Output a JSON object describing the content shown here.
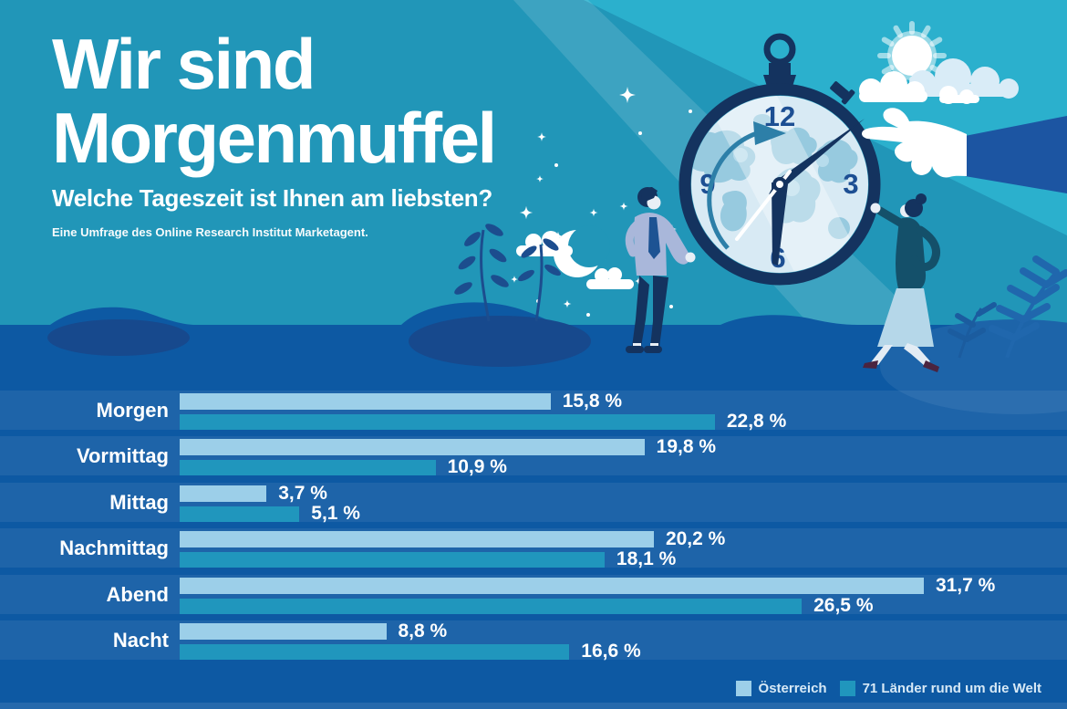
{
  "header": {
    "title_line1": "Wir sind",
    "title_line2": "Morgenmuffel",
    "subtitle": "Welche Tageszeit ist Ihnen am liebsten?",
    "source": "Eine Umfrage des Online Research Institut Marketagent."
  },
  "chart_data": {
    "type": "bar",
    "orientation": "horizontal",
    "categories": [
      "Morgen",
      "Vormittag",
      "Mittag",
      "Nachmittag",
      "Abend",
      "Nacht"
    ],
    "series": [
      {
        "name": "Österreich",
        "color": "#9ccfe9",
        "values": [
          15.8,
          19.8,
          3.7,
          20.2,
          31.7,
          8.8
        ],
        "labels": [
          "15,8 %",
          "19,8 %",
          "3,7 %",
          "20,2 %",
          "31,7 %",
          "8,8 %"
        ]
      },
      {
        "name": "71 Länder rund um die Welt",
        "color": "#2096bd",
        "values": [
          22.8,
          10.9,
          5.1,
          18.1,
          26.5,
          16.6
        ],
        "labels": [
          "22,8 %",
          "10,9 %",
          "5,1 %",
          "18,1 %",
          "26,5 %",
          "16,6 %"
        ]
      }
    ],
    "x_axis": {
      "min": 0,
      "max": 31.7,
      "unit": "%",
      "gridlines": false
    },
    "legend_position": "bottom-right",
    "title": "Wir sind Morgenmuffel",
    "subtitle": "Welche Tageszeit ist Ihnen am liebsten?"
  },
  "legend": {
    "items": [
      {
        "label": "Österreich",
        "color": "#9ccfe9"
      },
      {
        "label": "71 Länder rund um die Welt",
        "color": "#2096bd"
      }
    ]
  },
  "illustration": {
    "clock_numbers": {
      "twelve": "12",
      "three": "3",
      "six": "6",
      "nine": "9"
    },
    "colors": {
      "sky": "#2196b8",
      "sky_bright": "#2bb0cd",
      "ground": "#0d59a3",
      "navy": "#14335f",
      "clock_face": "#d8eaf4",
      "map_blue": "#97cadf",
      "number_blue": "#1d4f93",
      "mound_blue": "#1d64a9",
      "plant_navy": "#17498d",
      "fern_blue": "#2067ad",
      "sweater": "#a9b7da",
      "woman_top": "#14506a",
      "skirt": "#b5d7e9"
    }
  }
}
